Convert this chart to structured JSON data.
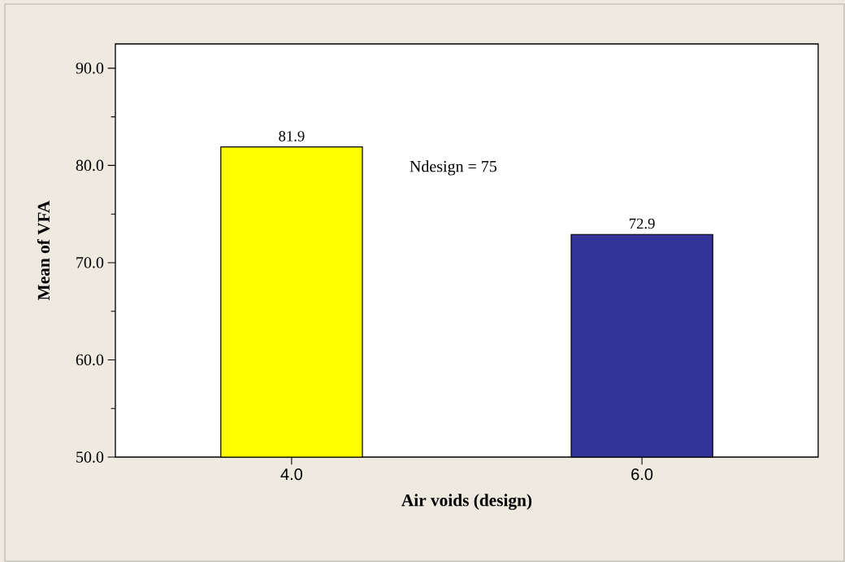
{
  "chart_data": {
    "type": "bar",
    "xlabel": "Air voids (design)",
    "ylabel": "Mean of VFA",
    "categories": [
      "4.0",
      "6.0"
    ],
    "values": [
      81.9,
      72.9
    ],
    "colors": [
      "#ffff00",
      "#333399"
    ],
    "ylim": [
      50,
      92.5
    ],
    "yticks": [
      {
        "value": 50,
        "label": "50.0"
      },
      {
        "value": 55,
        "label": null
      },
      {
        "value": 60,
        "label": "60.0"
      },
      {
        "value": 65,
        "label": null
      },
      {
        "value": 70,
        "label": "70.0"
      },
      {
        "value": 75,
        "label": null
      },
      {
        "value": 80,
        "label": "80.0"
      },
      {
        "value": 85,
        "label": null
      },
      {
        "value": 90,
        "label": "90.0"
      }
    ],
    "data_labels": true,
    "annotations": [
      "Ndesign = 75"
    ]
  }
}
